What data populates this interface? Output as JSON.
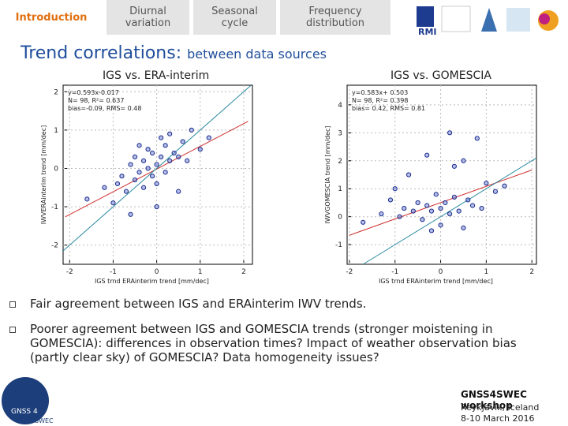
{
  "nav": {
    "items": [
      "Introduction",
      "Diurnal variation",
      "Seasonal cycle",
      "Frequency distribution"
    ]
  },
  "slide": {
    "title": "Trend correlations:",
    "subtitle": "between data sources",
    "bullets": [
      "Fair agreement between IGS and ERAinterim IWV trends.",
      "Poorer agreement between IGS and GOMESCIA trends (stronger moistening in GOMESCIA): differences in observation times? Impact of weather observation bias (partly clear sky) of GOMESCIA? Data homogeneity issues?"
    ],
    "footer": {
      "event": "GNSS4SWEC workshop",
      "place": "Reykjavik, Iceland",
      "dates": "8-10 March 2016"
    },
    "logo_text": [
      "GNSS 4",
      "SWEC"
    ],
    "logo_rmi": "RMI"
  },
  "chart_data": [
    {
      "type": "scatter",
      "title": "IGS vs. ERA-interim",
      "x_label": "IGS trnd ERAinterim trend [mm/dec]",
      "y_label": "IWVERAinterim trend [mm/dec]",
      "annotation": [
        "y=0.593x-0.017",
        "N=  98, R²= 0.637",
        "bias=-0.09, RMS= 0.48"
      ],
      "xlim": [
        -2.15,
        2.2
      ],
      "ylim": [
        -2.5,
        2.17
      ],
      "xticks": [
        -2,
        -1,
        0,
        1,
        2
      ],
      "yticks": [
        -2,
        -1,
        0,
        1,
        2
      ],
      "point_color": "#1a2a8c",
      "x": [
        -1.6,
        -1.2,
        -1.0,
        -0.9,
        -0.8,
        -0.7,
        -0.6,
        -0.5,
        -0.5,
        -0.4,
        -0.3,
        -0.3,
        -0.2,
        -0.2,
        -0.1,
        -0.1,
        0.0,
        0.0,
        0.1,
        0.1,
        0.2,
        0.2,
        0.3,
        0.3,
        0.4,
        0.5,
        0.6,
        0.7,
        0.8,
        1.0,
        1.2,
        -0.4,
        0.0,
        0.5,
        -0.6
      ],
      "y": [
        -0.8,
        -0.5,
        -0.9,
        -0.4,
        -0.2,
        -0.6,
        0.1,
        -0.3,
        0.3,
        -0.1,
        0.2,
        -0.5,
        0.0,
        0.5,
        -0.2,
        0.4,
        0.1,
        -0.4,
        0.3,
        0.8,
        -0.1,
        0.6,
        0.2,
        0.9,
        0.4,
        0.3,
        0.7,
        0.2,
        1.0,
        0.5,
        0.8,
        0.6,
        -1.0,
        -0.6,
        -1.2
      ],
      "lines": [
        {
          "color": "#d03030",
          "x": [
            -2.1,
            2.1
          ],
          "y": [
            -1.262,
            1.228
          ]
        },
        {
          "color": "#2a8aa0",
          "x": [
            -2.15,
            2.17
          ],
          "y": [
            -2.15,
            2.17
          ]
        }
      ]
    },
    {
      "type": "scatter",
      "title": "IGS vs. GOMESCIA",
      "x_label": "IGS trnd ERAinterim trend [mm/dec]",
      "y_label": "IWVGOMESCIA trend [mm/dec]",
      "annotation": [
        "y=0.583x+ 0.503",
        "N=  98, R²= 0.398",
        "bias= 0.42, RMS= 0.81"
      ],
      "xlim": [
        -2.05,
        2.1
      ],
      "ylim": [
        -1.7,
        4.7
      ],
      "xticks": [
        -2,
        -1,
        0,
        1,
        2
      ],
      "yticks": [
        -1,
        0,
        1,
        2,
        3,
        4
      ],
      "point_color": "#1a2a8c",
      "x": [
        -1.7,
        -1.3,
        -1.1,
        -0.9,
        -0.8,
        -0.6,
        -0.5,
        -0.4,
        -0.3,
        -0.2,
        -0.1,
        0.0,
        0.0,
        0.1,
        0.2,
        0.3,
        0.4,
        0.5,
        0.6,
        0.8,
        1.0,
        1.2,
        -0.7,
        -0.3,
        0.2,
        0.7,
        0.3,
        -0.2,
        1.4,
        0.9,
        -1.0,
        0.5
      ],
      "y": [
        -0.2,
        0.1,
        0.6,
        0.0,
        0.3,
        0.2,
        0.5,
        -0.1,
        0.4,
        0.2,
        0.8,
        0.3,
        -0.3,
        0.5,
        0.1,
        0.7,
        0.2,
        2.0,
        0.6,
        2.8,
        1.2,
        0.9,
        1.5,
        2.2,
        3.0,
        0.4,
        1.8,
        -0.5,
        1.1,
        0.3,
        1.0,
        -0.4
      ],
      "lines": [
        {
          "color": "#d03030",
          "x": [
            -2.0,
            2.0
          ],
          "y": [
            -0.663,
            1.669
          ]
        },
        {
          "color": "#2a8aa0",
          "x": [
            -1.7,
            2.1
          ],
          "y": [
            -1.7,
            2.1
          ]
        }
      ]
    }
  ]
}
